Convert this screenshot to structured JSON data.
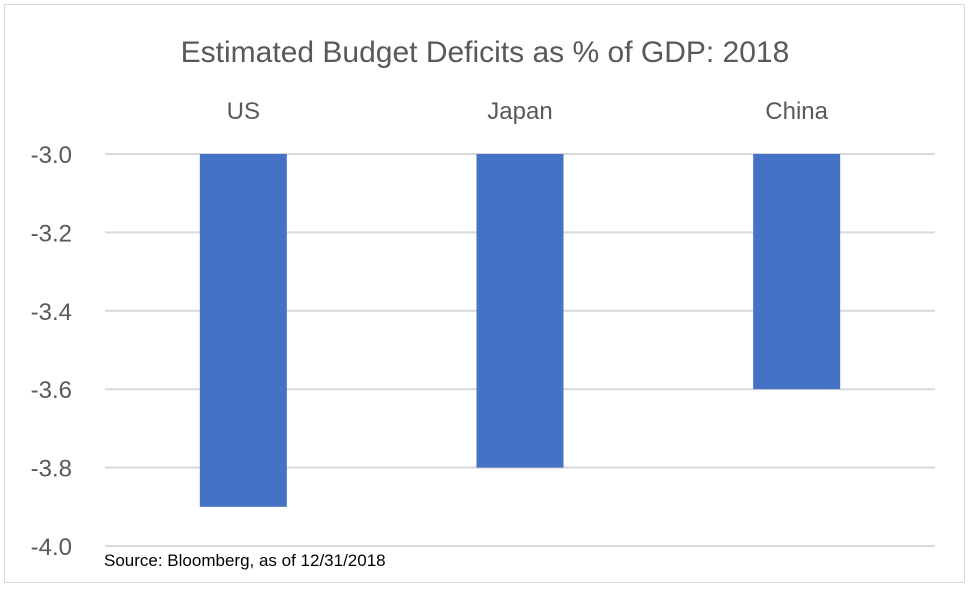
{
  "chart_data": {
    "type": "bar",
    "title": "Estimated Budget Deficits as % of GDP: 2018",
    "categories": [
      "US",
      "Japan",
      "China"
    ],
    "values": [
      -3.9,
      -3.8,
      -3.6
    ],
    "ylim": [
      -4.0,
      -3.0
    ],
    "yticks": [
      "-3.0",
      "-3.2",
      "-3.4",
      "-3.6",
      "-3.8",
      "-4.0"
    ],
    "ytick_values": [
      -3.0,
      -3.2,
      -3.4,
      -3.6,
      -3.8,
      -4.0
    ],
    "category_axis_position": "top",
    "grid": true,
    "legend": "none",
    "bar_color": "#4472c4",
    "grid_color": "#d9d9d9",
    "text_color": "#595959",
    "source": "Source: Bloomberg, as of 12/31/2018"
  }
}
